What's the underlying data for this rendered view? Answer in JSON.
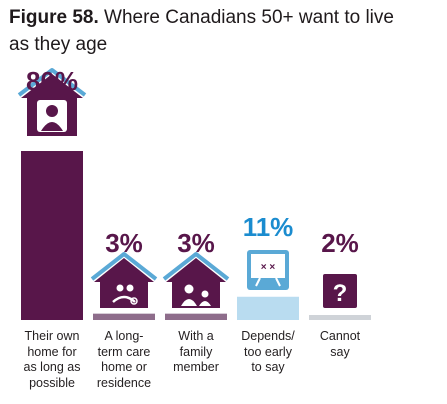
{
  "title": {
    "figure": "Figure 58.",
    "text": "Where Canadians 50+ want to live as they age"
  },
  "colors": {
    "primary": "#58164a",
    "muted": "#8e6d8b",
    "roof": "#5aa9d6",
    "highlight": "#b9dcf0",
    "highlight_text": "#1b8ccf",
    "neutral": "#cfd3d8",
    "text": "#231f20"
  },
  "chart_data": {
    "type": "bar",
    "title": "Where Canadians 50+ want to live as they age",
    "categories": [
      "Their own home for as long as possible",
      "A long-term care home or residence",
      "With a family member",
      "Depends/ too early to say",
      "Cannot say"
    ],
    "category_lines": [
      [
        "Their own",
        "home for",
        "as long as",
        "possible"
      ],
      [
        "A long-",
        "term care",
        "home or",
        "residence"
      ],
      [
        "With a",
        "family",
        "member"
      ],
      [
        "Depends/",
        "too early",
        "to say"
      ],
      [
        "Cannot",
        "say"
      ]
    ],
    "values": [
      80,
      3,
      3,
      11,
      2
    ],
    "value_labels": [
      "80%",
      "3%",
      "3%",
      "11%",
      "2%"
    ],
    "icons": [
      "house-person-icon",
      "house-care-icon",
      "house-family-icon",
      "whiteboard-plan-icon",
      "question-mark-icon"
    ],
    "ylim": [
      0,
      80
    ],
    "grid": false,
    "legend": "none"
  }
}
